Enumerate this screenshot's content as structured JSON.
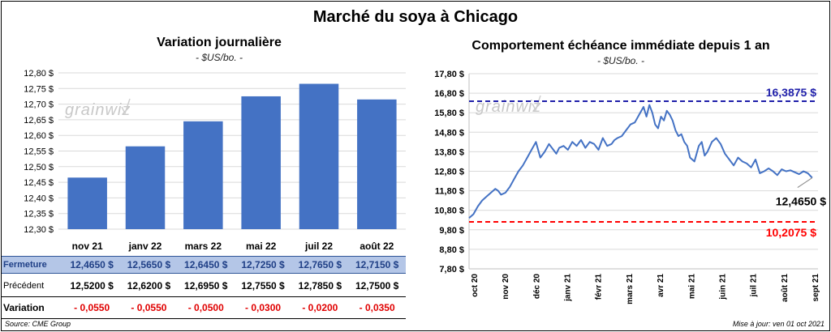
{
  "title": "Marché du soya à Chicago",
  "footer": {
    "source": "Source: CME Group",
    "updated": "Mise à jour: ven 01 oct 2021"
  },
  "watermark": "grainwiz",
  "table": {
    "rows": [
      {
        "label": "Fermeture",
        "values": [
          "12,4650 $",
          "12,5650 $",
          "12,6450 $",
          "12,7250 $",
          "12,7650 $",
          "12,7150 $"
        ]
      },
      {
        "label": "Précédent",
        "values": [
          "12,5200 $",
          "12,6200 $",
          "12,6950 $",
          "12,7550 $",
          "12,7850 $",
          "12,7500 $"
        ]
      },
      {
        "label": "Variation",
        "values": [
          "- 0,0550",
          "- 0,0550",
          "- 0,0500",
          "- 0,0300",
          "- 0,0200",
          "- 0,0350"
        ]
      }
    ]
  },
  "chart_data": [
    {
      "type": "bar",
      "title": "Variation journalière",
      "subtitle": "- $US/bo. -",
      "categories": [
        "nov 21",
        "janv 22",
        "mars 22",
        "mai 22",
        "juil 22",
        "août 22"
      ],
      "values": [
        12.465,
        12.565,
        12.645,
        12.725,
        12.765,
        12.715
      ],
      "ylim": [
        12.3,
        12.8
      ],
      "yticks": [
        "12,30 $",
        "12,35 $",
        "12,40 $",
        "12,45 $",
        "12,50 $",
        "12,55 $",
        "12,60 $",
        "12,65 $",
        "12,70 $",
        "12,75 $",
        "12,80 $"
      ],
      "color": "#4472c4",
      "grid": true
    },
    {
      "type": "line",
      "title": "Comportement échéance immédiate depuis 1 an",
      "subtitle": "- $US/bo. -",
      "ylim": [
        7.8,
        17.8
      ],
      "yticks": [
        "7,80 $",
        "8,80 $",
        "9,80 $",
        "10,80 $",
        "11,80 $",
        "12,80 $",
        "13,80 $",
        "14,80 $",
        "15,80 $",
        "16,80 $",
        "17,80 $"
      ],
      "xticks": [
        "oct 20",
        "nov 20",
        "déc 20",
        "janv 21",
        "févr 21",
        "mars 21",
        "avr 21",
        "mai 21",
        "juin 21",
        "juil 21",
        "août 21",
        "sept 21"
      ],
      "x_range": [
        0,
        12
      ],
      "series": [
        {
          "color": "#4472c4",
          "x": [
            0.0,
            0.15,
            0.3,
            0.45,
            0.6,
            0.75,
            0.9,
            1.0,
            1.1,
            1.25,
            1.4,
            1.55,
            1.7,
            1.85,
            2.0,
            2.15,
            2.3,
            2.45,
            2.6,
            2.75,
            2.9,
            3.0,
            3.1,
            3.25,
            3.4,
            3.55,
            3.7,
            3.85,
            4.0,
            4.15,
            4.3,
            4.45,
            4.6,
            4.75,
            4.9,
            5.0,
            5.1,
            5.25,
            5.4,
            5.55,
            5.7,
            5.85,
            6.0,
            6.1,
            6.2,
            6.3,
            6.4,
            6.5,
            6.6,
            6.7,
            6.8,
            6.9,
            7.0,
            7.1,
            7.2,
            7.3,
            7.4,
            7.5,
            7.6,
            7.75,
            7.9,
            8.0,
            8.1,
            8.2,
            8.35,
            8.5,
            8.65,
            8.8,
            8.95,
            9.1,
            9.25,
            9.4,
            9.55,
            9.7,
            9.85,
            10.0,
            10.15,
            10.3,
            10.45,
            10.6,
            10.75,
            10.9,
            11.05,
            11.2,
            11.35,
            11.5,
            11.65,
            11.8
          ],
          "y": [
            10.4,
            10.6,
            11.0,
            11.3,
            11.5,
            11.7,
            11.9,
            11.8,
            11.6,
            11.7,
            12.0,
            12.4,
            12.8,
            13.1,
            13.5,
            13.9,
            14.3,
            13.5,
            13.8,
            14.2,
            13.9,
            13.7,
            14.0,
            14.1,
            13.9,
            14.3,
            14.1,
            14.4,
            14.0,
            14.3,
            14.2,
            13.9,
            14.5,
            14.1,
            14.2,
            14.4,
            14.5,
            14.6,
            14.9,
            15.2,
            15.3,
            15.7,
            16.1,
            15.6,
            16.2,
            15.8,
            15.2,
            15.0,
            15.6,
            15.4,
            15.9,
            15.7,
            15.4,
            14.9,
            14.6,
            14.7,
            14.3,
            14.1,
            13.5,
            13.3,
            14.1,
            14.3,
            13.6,
            13.8,
            14.3,
            14.5,
            14.2,
            13.7,
            13.4,
            13.1,
            13.5,
            13.3,
            13.2,
            13.0,
            13.4,
            12.7,
            12.8,
            12.95,
            12.8,
            12.6,
            12.9,
            12.8,
            12.85,
            12.75,
            12.65,
            12.8,
            12.7,
            12.465
          ]
        }
      ],
      "reference_lines": [
        {
          "value": 16.3875,
          "label": "16,3875 $",
          "color": "#1f1faa"
        },
        {
          "value": 10.2075,
          "label": "10,2075 $",
          "color": "#ff0000"
        }
      ],
      "last_value_label": "12,4650 $",
      "grid": true
    }
  ]
}
